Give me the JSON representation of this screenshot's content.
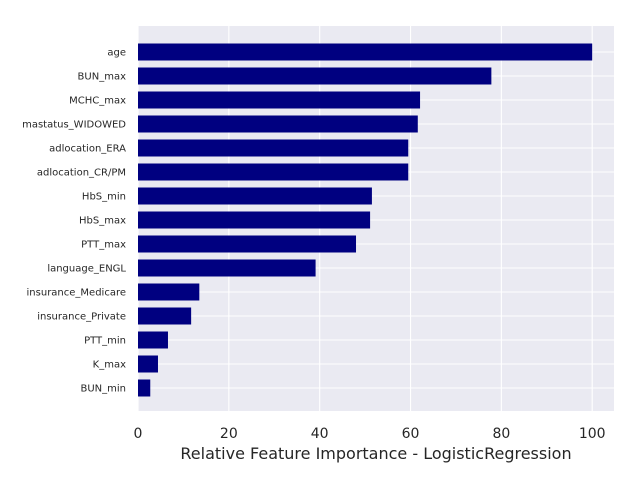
{
  "chart_data": {
    "type": "bar",
    "orientation": "horizontal",
    "categories": [
      "age",
      "BUN_max",
      "MCHC_max",
      "mastatus_WIDOWED",
      "adlocation_ERA",
      "adlocation_CR/PM",
      "HbS_min",
      "HbS_max",
      "PTT_max",
      "language_ENGL",
      "insurance_Medicare",
      "insurance_Private",
      "PTT_min",
      "K_max",
      "BUN_min"
    ],
    "values": [
      100,
      77.8,
      62.1,
      61.6,
      59.5,
      59.5,
      51.5,
      51.1,
      48.0,
      39.1,
      13.5,
      11.7,
      6.6,
      4.4,
      2.7
    ],
    "title": "",
    "xlabel": "Relative Feature Importance - LogisticRegression",
    "ylabel": "",
    "xlim": [
      0,
      104.8
    ],
    "xticks": [
      0,
      20,
      40,
      60,
      80,
      100
    ],
    "grid": true,
    "bar_color": "#000080",
    "background_color": "#eaeaf2",
    "grid_color": "#ffffff"
  }
}
